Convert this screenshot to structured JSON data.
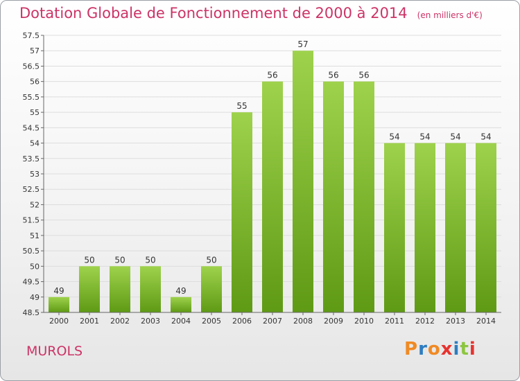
{
  "header": {
    "title": "Dotation Globale de Fonctionnement de 2000 à 2014",
    "unit": "(en milliers d'€)"
  },
  "footer": {
    "commune": "MUROLS",
    "logo_text": "Proxiti",
    "logo_colors": [
      "#f08a24",
      "#2e7dc0",
      "#f08a24",
      "#e8322e",
      "#2e7dc0",
      "#8cc63f",
      "#e8322e"
    ]
  },
  "colors": {
    "title": "#cc3366",
    "bar_top": "#9ed24c",
    "bar_bottom": "#5f9a15",
    "axis": "#666666",
    "grid": "#dddddd"
  },
  "chart_data": {
    "type": "bar",
    "title": "Dotation Globale de Fonctionnement de 2000 à 2014",
    "categories": [
      "2000",
      "2001",
      "2002",
      "2003",
      "2004",
      "2005",
      "2006",
      "2007",
      "2008",
      "2009",
      "2010",
      "2011",
      "2012",
      "2013",
      "2014"
    ],
    "values": [
      49,
      50,
      50,
      50,
      49,
      50,
      55,
      56,
      57,
      56,
      56,
      54,
      54,
      54,
      54
    ],
    "data_labels": [
      "49",
      "50",
      "50",
      "50",
      "49",
      "50",
      "55",
      "56",
      "57",
      "56",
      "56",
      "54",
      "54",
      "54",
      "54"
    ],
    "ylim": [
      48.5,
      57.5
    ],
    "yticks": [
      "48.5",
      "49",
      "49.5",
      "50",
      "50.5",
      "51",
      "51.5",
      "52",
      "52.5",
      "53",
      "53.5",
      "54",
      "54.5",
      "55",
      "55.5",
      "56",
      "56.5",
      "57",
      "57.5"
    ],
    "grid": true,
    "legend": "none"
  }
}
